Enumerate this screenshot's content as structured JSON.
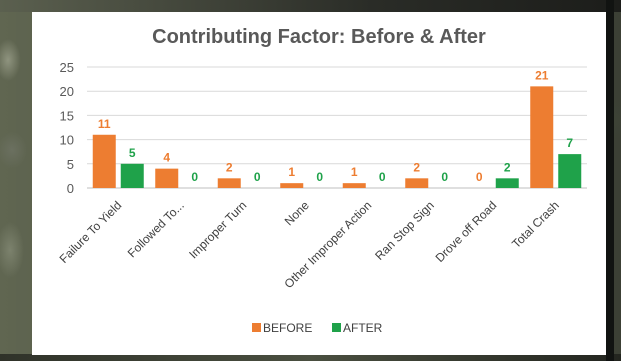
{
  "chart_data": {
    "type": "bar",
    "title": "Contributing Factor: Before & After",
    "categories": [
      "Failure To Yield",
      "Followed To...",
      "Improper Turn",
      "None",
      "Other Improper Action",
      "Ran Stop Sign",
      "Drove off Road",
      "Total Crash"
    ],
    "series": [
      {
        "name": "BEFORE",
        "color": "#ed7d31",
        "values": [
          11,
          4,
          2,
          1,
          1,
          2,
          0,
          21
        ]
      },
      {
        "name": "AFTER",
        "color": "#1fa24a",
        "values": [
          5,
          0,
          0,
          0,
          0,
          0,
          2,
          7
        ]
      }
    ],
    "ylim": [
      0,
      25
    ],
    "yticks": [
      0,
      5,
      10,
      15,
      20,
      25
    ],
    "grid": true,
    "legend": "bottom",
    "data_labels": true
  }
}
